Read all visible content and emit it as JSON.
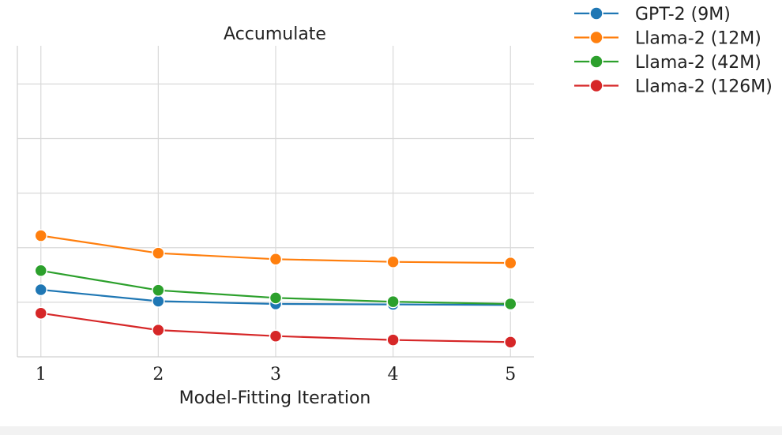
{
  "chart_data": {
    "type": "line",
    "title": "Accumulate",
    "xlabel": "Model-Fitting Iteration",
    "ylabel": "",
    "x": [
      1,
      2,
      3,
      4,
      5
    ],
    "xlim": [
      0.8,
      5.2
    ],
    "ylim": [
      0,
      5.7
    ],
    "y_ticks_labeled": false,
    "grid": true,
    "legend_position": "outside-top-right",
    "series": [
      {
        "name": "GPT-2 (9M)",
        "color": "#1f77b4",
        "values": [
          1.23,
          1.02,
          0.97,
          0.96,
          0.95
        ]
      },
      {
        "name": "Llama-2 (12M)",
        "color": "#ff7f0e",
        "values": [
          2.22,
          1.9,
          1.79,
          1.74,
          1.72
        ]
      },
      {
        "name": "Llama-2 (42M)",
        "color": "#2ca02c",
        "values": [
          1.58,
          1.22,
          1.08,
          1.01,
          0.97
        ]
      },
      {
        "name": "Llama-2 (126M)",
        "color": "#d62728",
        "values": [
          0.8,
          0.49,
          0.38,
          0.31,
          0.27
        ]
      }
    ]
  }
}
